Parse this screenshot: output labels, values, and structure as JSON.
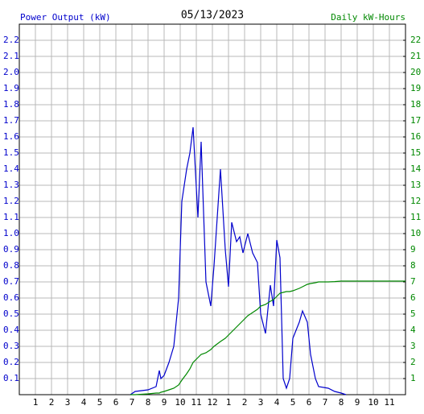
{
  "chart_data": {
    "type": "line",
    "title": "05/13/2023",
    "y_label": "Power Output (kW)",
    "y2_label": "Daily kW-Hours",
    "x": [
      0,
      6.9,
      7.2,
      8,
      8.5,
      8.7,
      8.8,
      9,
      9.3,
      9.6,
      9.9,
      10.1,
      10.4,
      10.6,
      10.8,
      11.1,
      11.3,
      11.6,
      11.9,
      12.1,
      12.5,
      12.8,
      13,
      13.2,
      13.5,
      13.7,
      13.9,
      14.2,
      14.5,
      14.8,
      15,
      15.3,
      15.6,
      15.8,
      16,
      16.2,
      16.4,
      16.6,
      16.8,
      17,
      17.4,
      17.6,
      17.9,
      18.1,
      18.4,
      18.6,
      19.2,
      19.6,
      20,
      20.3,
      21,
      22,
      23,
      24
    ],
    "series": [
      {
        "name": "Power Output (kW)",
        "color": "#0000cc",
        "values": [
          null,
          0,
          0.02,
          0.03,
          0.05,
          0.15,
          0.1,
          0.12,
          0.2,
          0.3,
          0.6,
          1.2,
          1.4,
          1.5,
          1.66,
          1.1,
          1.57,
          0.7,
          0.55,
          0.8,
          1.4,
          0.9,
          0.67,
          1.07,
          0.95,
          0.98,
          0.88,
          1.0,
          0.88,
          0.82,
          0.5,
          0.38,
          0.68,
          0.55,
          0.96,
          0.85,
          0.1,
          0.04,
          0.1,
          0.35,
          0.45,
          0.52,
          0.45,
          0.25,
          0.1,
          0.05,
          0.04,
          0.02,
          0.01,
          0,
          null,
          null,
          null,
          null
        ]
      },
      {
        "name": "Daily kW-Hours",
        "color": "#008800",
        "axis": "y2",
        "values": [
          null,
          0,
          0,
          0.05,
          0.1,
          0.1,
          0.15,
          0.2,
          0.3,
          0.4,
          0.6,
          0.9,
          1.3,
          1.6,
          2.0,
          2.3,
          2.5,
          2.6,
          2.8,
          3.0,
          3.3,
          3.5,
          3.7,
          3.9,
          4.2,
          4.4,
          4.6,
          4.9,
          5.1,
          5.3,
          5.5,
          5.6,
          5.8,
          5.9,
          6.1,
          6.3,
          6.35,
          6.4,
          6.4,
          6.45,
          6.6,
          6.7,
          6.85,
          6.9,
          6.95,
          7.0,
          7.0,
          7.02,
          7.05,
          7.05,
          7.05,
          7.05,
          7.05,
          7.05
        ]
      }
    ],
    "xlim": [
      0,
      24
    ],
    "xticks": [
      1,
      2,
      3,
      4,
      5,
      6,
      7,
      8,
      9,
      10,
      11,
      12,
      {
        "value": 13,
        "label": "1"
      },
      {
        "value": 14,
        "label": "2"
      },
      {
        "value": 15,
        "label": "3"
      },
      {
        "value": 16,
        "label": "4"
      },
      {
        "value": 17,
        "label": "5"
      },
      {
        "value": 18,
        "label": "6"
      },
      {
        "value": 19,
        "label": "7"
      },
      {
        "value": 20,
        "label": "8"
      },
      {
        "value": 21,
        "label": "9"
      },
      {
        "value": 22,
        "label": "10"
      },
      {
        "value": 23,
        "label": "11"
      }
    ],
    "ylim": [
      0,
      2.3
    ],
    "yticks": [
      0.1,
      0.2,
      0.3,
      0.4,
      0.5,
      0.6,
      0.7,
      0.8,
      0.9,
      {
        "value": 1,
        "label": "1.0"
      },
      1.1,
      1.2,
      1.3,
      1.4,
      1.5,
      1.6,
      1.7,
      1.8,
      1.9,
      {
        "value": 2,
        "label": "2.0"
      },
      2.1,
      2.2
    ],
    "y2lim": [
      0,
      23
    ],
    "y2ticks": [
      1,
      2,
      3,
      4,
      5,
      6,
      7,
      8,
      9,
      10,
      11,
      12,
      13,
      14,
      15,
      16,
      17,
      18,
      19,
      20,
      21,
      22
    ],
    "grid": true
  }
}
